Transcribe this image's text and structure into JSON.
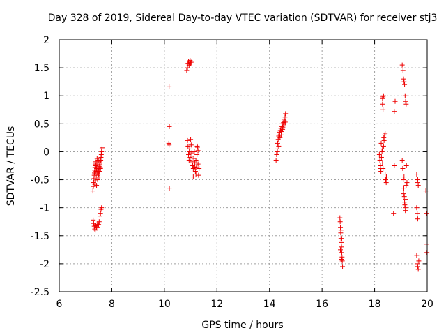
{
  "chart_data": {
    "type": "scatter",
    "title": "Day 328 of 2019, Sidereal Day-to-day VTEC variation (SDTVAR) for receiver stj3",
    "xlabel": "GPS time / hours",
    "ylabel": "SDTVAR / TECUs",
    "xlim": [
      6,
      20
    ],
    "ylim": [
      -2.5,
      2
    ],
    "xticks": [
      6,
      8,
      10,
      12,
      14,
      16,
      18,
      20
    ],
    "yticks": [
      -2.5,
      -2,
      -1.5,
      -1,
      -0.5,
      0,
      0.5,
      1,
      1.5,
      2
    ],
    "xtick_labels": [
      "6",
      "8",
      "10",
      "12",
      "14",
      "16",
      "18",
      "20"
    ],
    "ytick_labels": [
      "-2.5",
      "-2",
      "-1.5",
      "-1",
      "-0.5",
      "0",
      "0.5",
      "1",
      "1.5",
      "2"
    ],
    "grid": true,
    "marker": "+",
    "color": "#ee0000",
    "series": [
      {
        "name": "SDTVAR",
        "points": [
          [
            7.28,
            -0.7
          ],
          [
            7.3,
            -0.62
          ],
          [
            7.31,
            -0.55
          ],
          [
            7.32,
            -0.48
          ],
          [
            7.33,
            -0.42
          ],
          [
            7.34,
            -0.38
          ],
          [
            7.35,
            -0.33
          ],
          [
            7.36,
            -0.28
          ],
          [
            7.37,
            -0.22
          ],
          [
            7.38,
            -0.18
          ],
          [
            7.39,
            -0.25
          ],
          [
            7.4,
            -0.35
          ],
          [
            7.41,
            -0.45
          ],
          [
            7.42,
            -0.3
          ],
          [
            7.43,
            -0.2
          ],
          [
            7.44,
            -0.12
          ],
          [
            7.45,
            -0.38
          ],
          [
            7.46,
            -0.5
          ],
          [
            7.47,
            -0.42
          ],
          [
            7.48,
            -0.28
          ],
          [
            7.49,
            -0.15
          ],
          [
            7.5,
            -0.32
          ],
          [
            7.51,
            -0.45
          ],
          [
            7.52,
            -0.26
          ],
          [
            7.53,
            -0.35
          ],
          [
            7.55,
            -0.22
          ],
          [
            7.57,
            -0.3
          ],
          [
            7.58,
            -0.15
          ],
          [
            7.6,
            -0.05
          ],
          [
            7.62,
            0.05
          ],
          [
            7.35,
            -0.58
          ],
          [
            7.38,
            -0.52
          ],
          [
            7.42,
            -0.6
          ],
          [
            7.46,
            -0.35
          ],
          [
            7.5,
            -0.4
          ],
          [
            7.54,
            -0.18
          ],
          [
            7.56,
            -0.28
          ],
          [
            7.59,
            -0.1
          ],
          [
            7.61,
            0.0
          ],
          [
            7.63,
            0.07
          ],
          [
            7.29,
            -1.22
          ],
          [
            7.31,
            -1.28
          ],
          [
            7.33,
            -1.33
          ],
          [
            7.35,
            -1.38
          ],
          [
            7.37,
            -1.4
          ],
          [
            7.39,
            -1.32
          ],
          [
            7.42,
            -1.36
          ],
          [
            7.44,
            -1.3
          ],
          [
            7.47,
            -1.35
          ],
          [
            7.5,
            -1.3
          ],
          [
            7.52,
            -1.25
          ],
          [
            7.55,
            -1.15
          ],
          [
            7.57,
            -1.1
          ],
          [
            7.59,
            -1.03
          ],
          [
            7.61,
            -1.0
          ],
          [
            10.18,
            1.16
          ],
          [
            10.19,
            0.45
          ],
          [
            10.17,
            0.15
          ],
          [
            10.18,
            0.12
          ],
          [
            10.19,
            -0.65
          ],
          [
            10.85,
            1.45
          ],
          [
            10.88,
            1.5
          ],
          [
            10.9,
            1.58
          ],
          [
            10.92,
            1.62
          ],
          [
            10.94,
            1.55
          ],
          [
            10.96,
            1.6
          ],
          [
            10.98,
            1.63
          ],
          [
            11.0,
            1.57
          ],
          [
            11.02,
            1.6
          ],
          [
            10.88,
            0.2
          ],
          [
            10.9,
            0.1
          ],
          [
            10.92,
            -0.05
          ],
          [
            10.94,
            -0.15
          ],
          [
            10.96,
            0.05
          ],
          [
            10.98,
            -0.1
          ],
          [
            11.0,
            0.22
          ],
          [
            11.02,
            0.12
          ],
          [
            11.04,
            -0.02
          ],
          [
            11.06,
            -0.18
          ],
          [
            11.08,
            -0.25
          ],
          [
            11.1,
            -0.3
          ],
          [
            11.12,
            -0.12
          ],
          [
            11.14,
            0.0
          ],
          [
            11.16,
            -0.2
          ],
          [
            11.18,
            -0.35
          ],
          [
            11.2,
            -0.4
          ],
          [
            11.22,
            -0.28
          ],
          [
            11.24,
            -0.05
          ],
          [
            11.26,
            0.08
          ],
          [
            11.28,
            -0.22
          ],
          [
            11.3,
            -0.42
          ],
          [
            11.25,
            0.1
          ],
          [
            11.2,
            -0.15
          ],
          [
            10.95,
            0.0
          ],
          [
            11.05,
            -0.08
          ],
          [
            11.15,
            -0.27
          ],
          [
            11.1,
            -0.45
          ],
          [
            11.28,
            0.02
          ],
          [
            11.32,
            -0.3
          ],
          [
            14.25,
            -0.15
          ],
          [
            14.27,
            -0.05
          ],
          [
            14.29,
            0.05
          ],
          [
            14.31,
            0.15
          ],
          [
            14.33,
            0.22
          ],
          [
            14.35,
            0.28
          ],
          [
            14.37,
            0.35
          ],
          [
            14.39,
            0.3
          ],
          [
            14.41,
            0.38
          ],
          [
            14.43,
            0.42
          ],
          [
            14.45,
            0.36
          ],
          [
            14.47,
            0.45
          ],
          [
            14.49,
            0.5
          ],
          [
            14.51,
            0.44
          ],
          [
            14.53,
            0.52
          ],
          [
            14.55,
            0.58
          ],
          [
            14.57,
            0.55
          ],
          [
            14.59,
            0.62
          ],
          [
            14.61,
            0.68
          ],
          [
            14.35,
            0.1
          ],
          [
            14.4,
            0.25
          ],
          [
            14.45,
            0.3
          ],
          [
            14.5,
            0.4
          ],
          [
            14.55,
            0.48
          ],
          [
            14.3,
            0.0
          ],
          [
            14.6,
            0.53
          ],
          [
            16.68,
            -1.18
          ],
          [
            16.69,
            -1.25
          ],
          [
            16.7,
            -1.35
          ],
          [
            16.71,
            -1.45
          ],
          [
            16.72,
            -1.55
          ],
          [
            16.73,
            -1.62
          ],
          [
            16.74,
            -1.7
          ],
          [
            16.75,
            -1.8
          ],
          [
            16.76,
            -1.88
          ],
          [
            16.77,
            -1.95
          ],
          [
            16.78,
            -2.05
          ],
          [
            16.72,
            -1.4
          ],
          [
            16.75,
            -1.55
          ],
          [
            16.7,
            -1.75
          ],
          [
            16.74,
            -1.92
          ],
          [
            18.18,
            -0.05
          ],
          [
            18.2,
            -0.15
          ],
          [
            18.22,
            -0.25
          ],
          [
            18.24,
            -0.35
          ],
          [
            18.26,
            -0.1
          ],
          [
            18.28,
            0.0
          ],
          [
            18.3,
            -0.2
          ],
          [
            18.32,
            -0.3
          ],
          [
            18.34,
            0.1
          ],
          [
            18.36,
            0.2
          ],
          [
            18.38,
            0.3
          ],
          [
            18.4,
            -0.4
          ],
          [
            18.42,
            -0.5
          ],
          [
            18.44,
            -0.55
          ],
          [
            18.25,
            0.15
          ],
          [
            18.35,
            0.25
          ],
          [
            18.3,
            0.05
          ],
          [
            18.22,
            -0.3
          ],
          [
            18.4,
            0.33
          ],
          [
            18.45,
            -0.45
          ],
          [
            18.3,
            0.95
          ],
          [
            18.32,
            0.98
          ],
          [
            18.34,
            1.0
          ],
          [
            18.3,
            0.85
          ],
          [
            18.32,
            0.75
          ],
          [
            18.75,
            0.72
          ],
          [
            18.78,
            0.9
          ],
          [
            18.75,
            -0.25
          ],
          [
            18.72,
            -1.1
          ],
          [
            19.05,
            1.55
          ],
          [
            19.08,
            1.45
          ],
          [
            19.1,
            1.3
          ],
          [
            19.12,
            1.25
          ],
          [
            19.14,
            1.2
          ],
          [
            19.16,
            1.0
          ],
          [
            19.18,
            0.9
          ],
          [
            19.2,
            0.85
          ],
          [
            19.05,
            -0.15
          ],
          [
            19.07,
            -0.3
          ],
          [
            19.09,
            -0.5
          ],
          [
            19.11,
            -0.65
          ],
          [
            19.13,
            -0.8
          ],
          [
            19.15,
            -0.95
          ],
          [
            19.17,
            -1.05
          ],
          [
            19.19,
            -0.85
          ],
          [
            19.21,
            -0.25
          ],
          [
            19.23,
            -0.55
          ],
          [
            19.1,
            -0.75
          ],
          [
            19.14,
            -0.9
          ],
          [
            19.18,
            -1.0
          ],
          [
            19.12,
            -0.45
          ],
          [
            19.2,
            -0.6
          ],
          [
            19.6,
            -0.4
          ],
          [
            19.62,
            -0.55
          ],
          [
            19.64,
            -0.5
          ],
          [
            19.6,
            -1.0
          ],
          [
            19.62,
            -1.1
          ],
          [
            19.64,
            -1.2
          ],
          [
            19.66,
            -0.6
          ],
          [
            19.6,
            -1.85
          ],
          [
            19.62,
            -2.0
          ],
          [
            19.64,
            -2.05
          ],
          [
            19.66,
            -2.1
          ],
          [
            19.68,
            -1.95
          ],
          [
            19.95,
            -0.7
          ],
          [
            19.98,
            -1.1
          ],
          [
            19.96,
            -1.65
          ],
          [
            19.99,
            -1.8
          ]
        ]
      }
    ]
  }
}
